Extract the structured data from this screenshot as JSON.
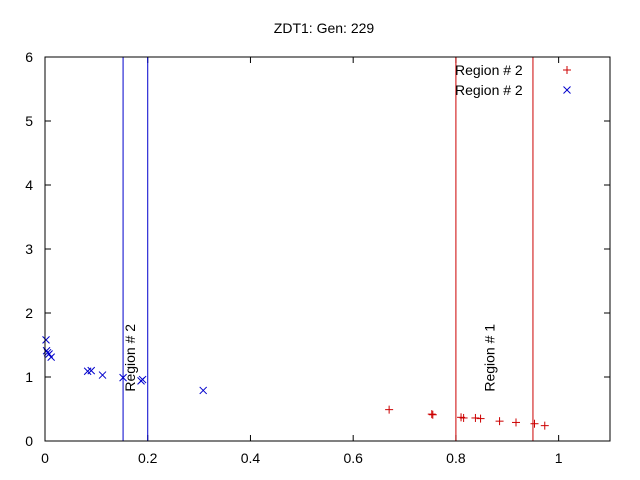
{
  "chart_data": {
    "type": "scatter",
    "title": "ZDT1: Gen: 229",
    "xlabel": "",
    "ylabel": "",
    "xlim": [
      0,
      1.1
    ],
    "ylim": [
      0,
      6
    ],
    "xticks": [
      0,
      0.2,
      0.4,
      0.6,
      0.8,
      1
    ],
    "xtick_labels": [
      "0",
      "0.2",
      "0.4",
      "0.6",
      "0.8",
      "1"
    ],
    "yticks": [
      0,
      1,
      2,
      3,
      4,
      5,
      6
    ],
    "ytick_labels": [
      "0",
      "1",
      "2",
      "3",
      "4",
      "5",
      "6"
    ],
    "grid": false,
    "legend_position": "top-right",
    "series": [
      {
        "name": "Region # 2",
        "marker": "plus",
        "color": "#cc0000",
        "points": [
          [
            0.67,
            0.49
          ],
          [
            0.753,
            0.42
          ],
          [
            0.755,
            0.41
          ],
          [
            0.81,
            0.37
          ],
          [
            0.815,
            0.36
          ],
          [
            0.838,
            0.36
          ],
          [
            0.848,
            0.35
          ],
          [
            0.885,
            0.31
          ],
          [
            0.917,
            0.29
          ],
          [
            0.953,
            0.27
          ],
          [
            0.973,
            0.24
          ]
        ]
      },
      {
        "name": "Region # 2",
        "marker": "cross",
        "color": "#0000cc",
        "points": [
          [
            0.002,
            1.58
          ],
          [
            0.003,
            1.41
          ],
          [
            0.005,
            1.38
          ],
          [
            0.008,
            1.36
          ],
          [
            0.012,
            1.31
          ],
          [
            0.083,
            1.09
          ],
          [
            0.09,
            1.1
          ],
          [
            0.112,
            1.03
          ],
          [
            0.152,
            0.99
          ],
          [
            0.187,
            0.94
          ],
          [
            0.19,
            0.96
          ],
          [
            0.308,
            0.79
          ]
        ]
      }
    ],
    "vlines": [
      {
        "x": 0.152,
        "color": "#0000cc"
      },
      {
        "x": 0.2,
        "color": "#0000cc"
      },
      {
        "x": 0.8,
        "color": "#cc0000"
      },
      {
        "x": 0.95,
        "color": "#cc0000"
      }
    ],
    "annotations": [
      {
        "text": "Region # 2",
        "x": 0.175,
        "y": 1.3
      },
      {
        "text": "Region # 1",
        "x": 0.875,
        "y": 1.3
      }
    ]
  }
}
